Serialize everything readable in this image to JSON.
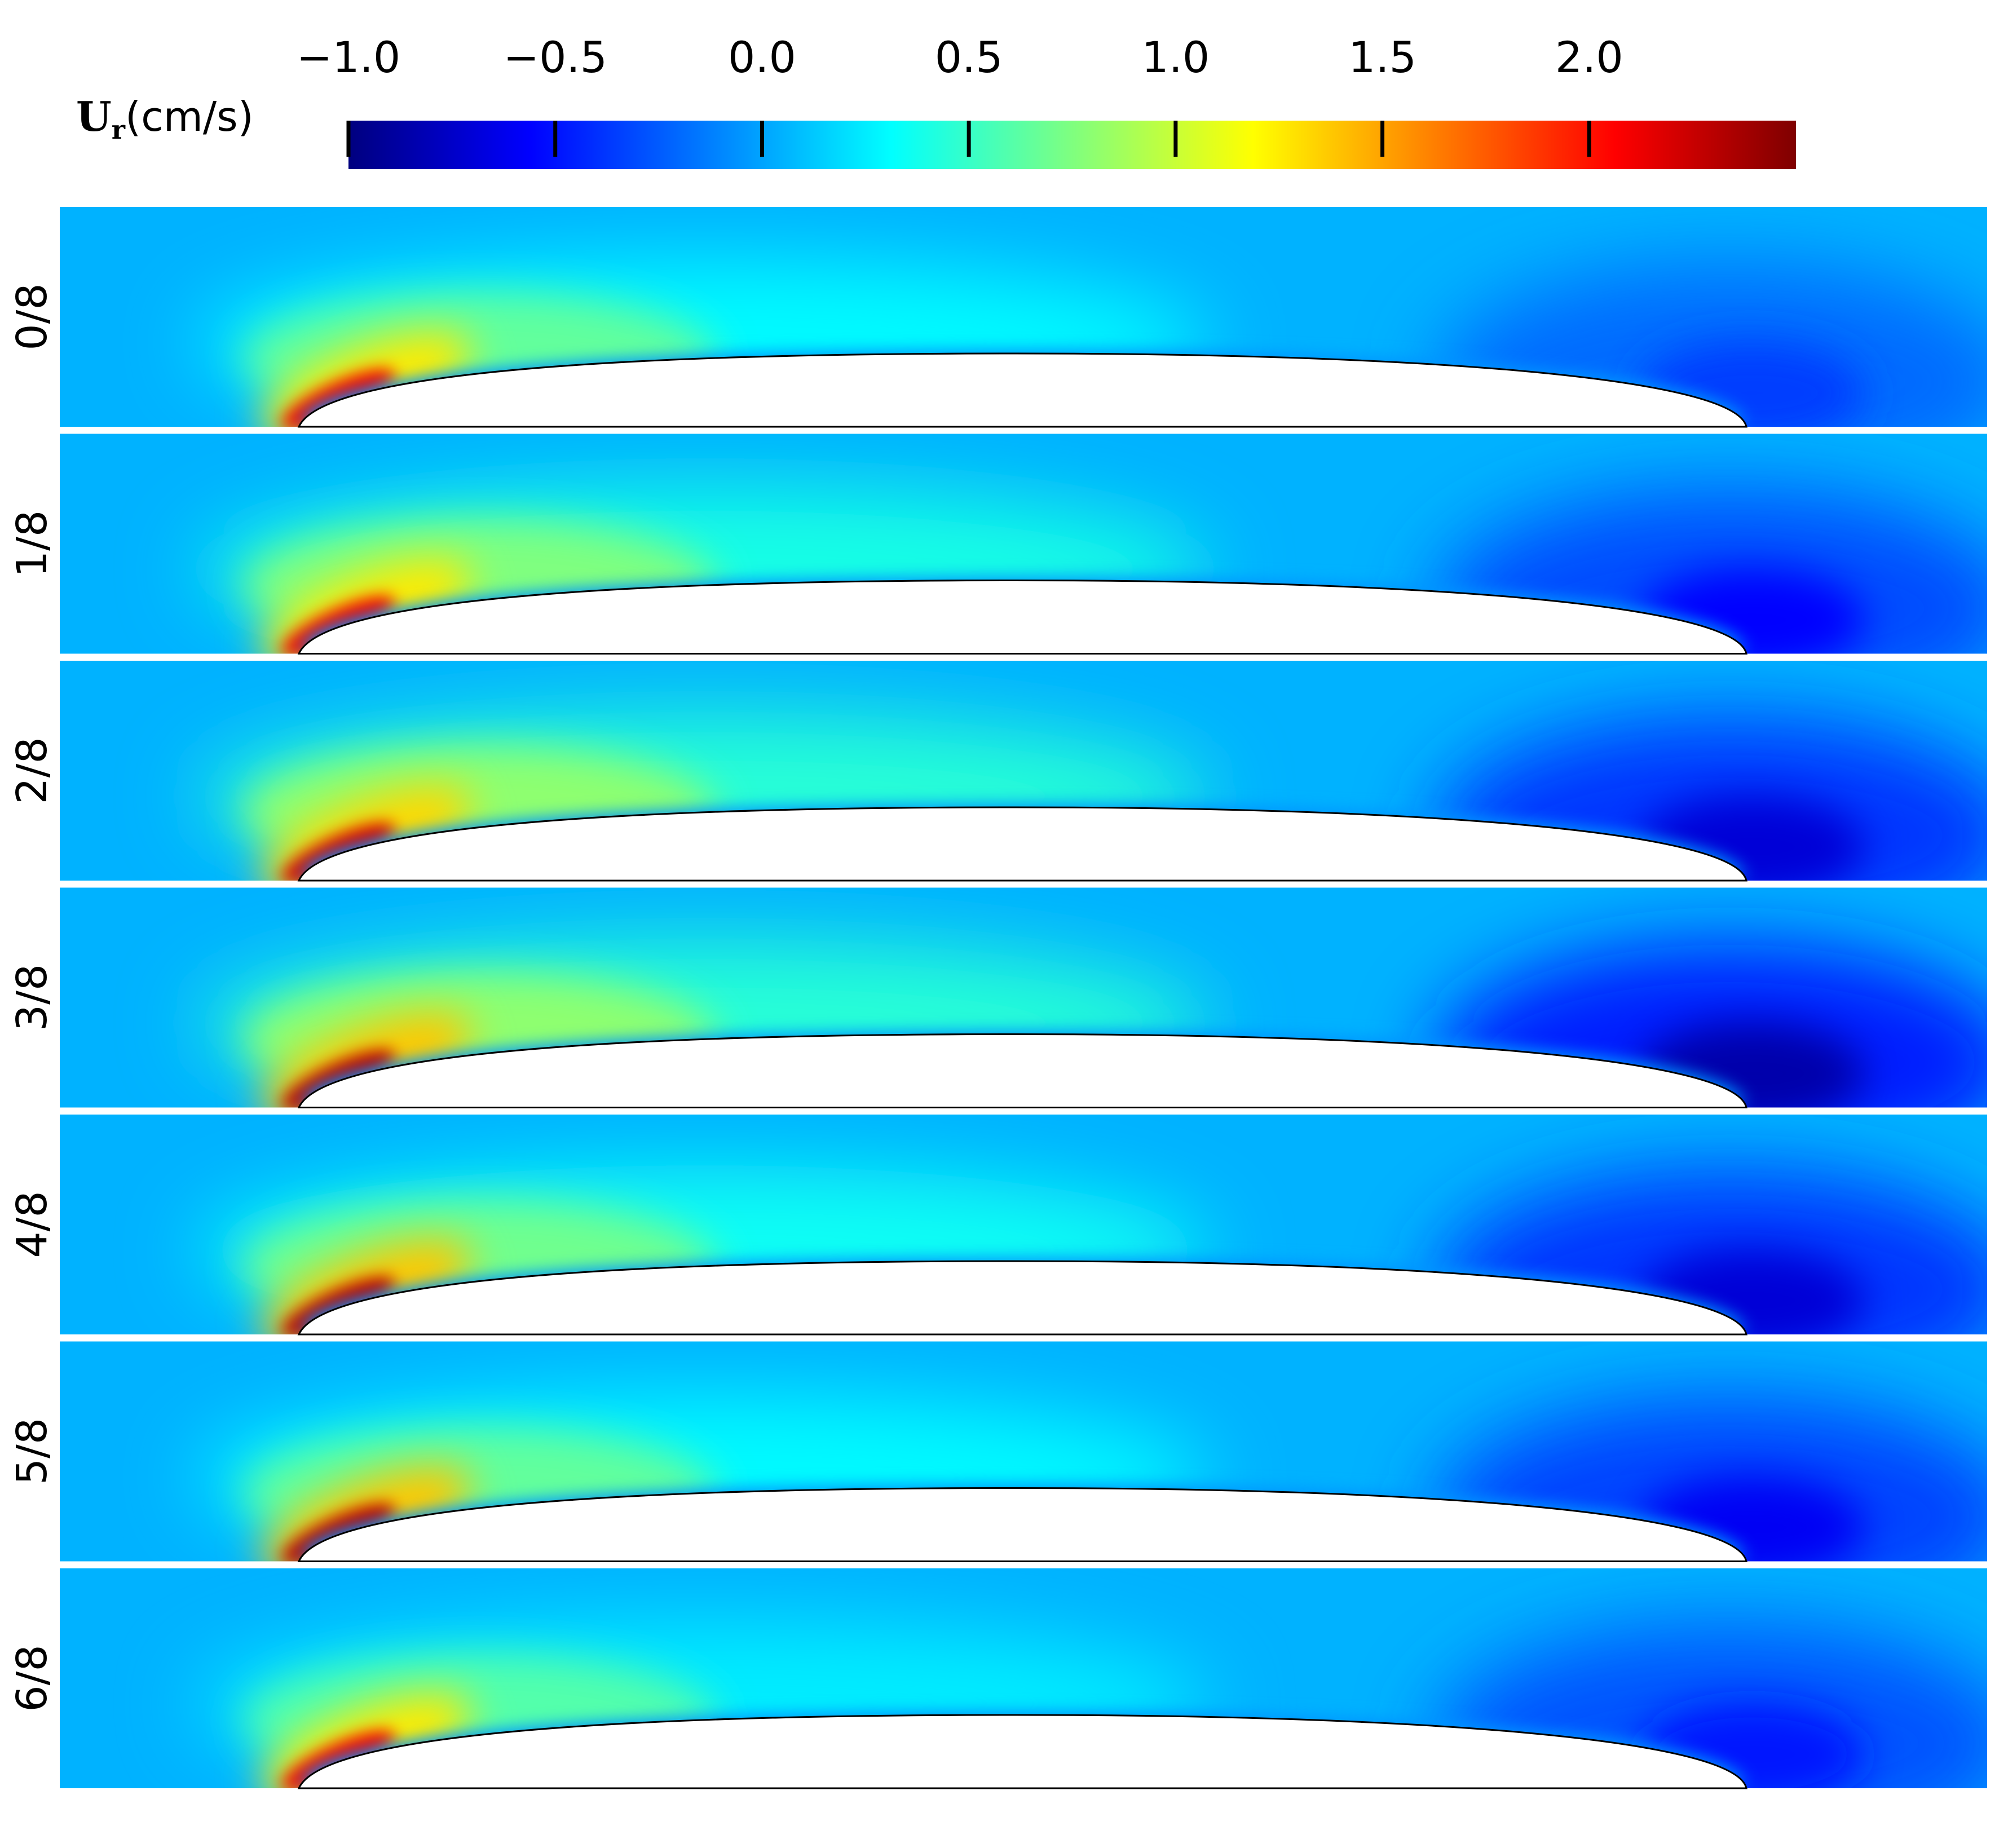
{
  "chart_data": {
    "type": "heatmap",
    "title": "",
    "colorbar": {
      "label_main": "U",
      "label_sub": "r",
      "label_unit": "(cm/s)",
      "range": [
        -1.0,
        2.5
      ],
      "ticks": [
        -1.0,
        -0.5,
        0.0,
        0.5,
        1.0,
        1.5,
        2.0
      ],
      "tick_labels": [
        "−1.0",
        "−0.5",
        "0.0",
        "0.5",
        "1.0",
        "1.5",
        "2.0"
      ],
      "colormap": "jet",
      "stops": [
        "#00007f",
        "#0000ff",
        "#007fff",
        "#00ffff",
        "#7fff7f",
        "#ffff00",
        "#ff7f00",
        "#ff0000",
        "#7f0000"
      ]
    },
    "panels": [
      {
        "label": "0/8",
        "leading_edge_peak": 2.1,
        "trailing_min": -0.35,
        "mid_field": 0.3
      },
      {
        "label": "1/8",
        "leading_edge_peak": 2.1,
        "trailing_min": -0.55,
        "mid_field": 0.4
      },
      {
        "label": "2/8",
        "leading_edge_peak": 2.2,
        "trailing_min": -0.7,
        "mid_field": 0.45
      },
      {
        "label": "3/8",
        "leading_edge_peak": 2.3,
        "trailing_min": -0.85,
        "mid_field": 0.45
      },
      {
        "label": "4/8",
        "leading_edge_peak": 2.3,
        "trailing_min": -0.7,
        "mid_field": 0.35
      },
      {
        "label": "5/8",
        "leading_edge_peak": 2.3,
        "trailing_min": -0.6,
        "mid_field": 0.3
      },
      {
        "label": "6/8",
        "leading_edge_peak": 2.1,
        "trailing_min": -0.5,
        "mid_field": 0.25
      }
    ]
  },
  "colors": {
    "background_field": "#0a9bff",
    "foil": "#ffffff",
    "foil_outline": "#000000"
  }
}
